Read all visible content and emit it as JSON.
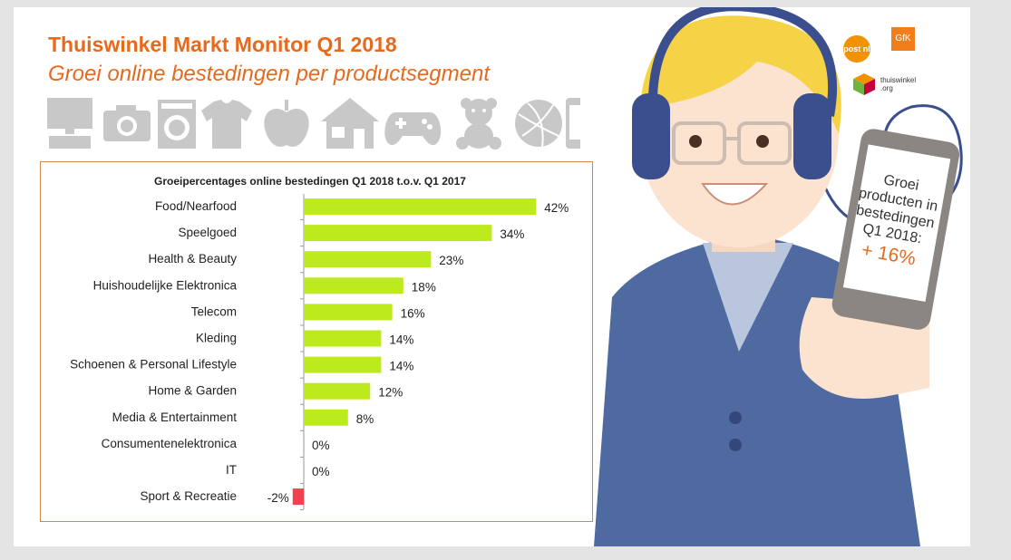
{
  "header": {
    "title": "Thuiswinkel Markt Monitor Q1 2018",
    "subtitle": "Groei online bestedingen per productsegment"
  },
  "icons": [
    "computer-icon",
    "camera-icon",
    "washing-machine-icon",
    "tshirt-icon",
    "apple-icon",
    "house-icon",
    "gamepad-icon",
    "teddy-bear-icon",
    "ball-icon",
    "smartphone-icon"
  ],
  "logos": {
    "postnl": "post nl",
    "gfk": "GfK",
    "thuiswinkel": "thuiswinkel",
    "thuiswinkel_domain": ".org"
  },
  "phone": {
    "text": [
      "Groei",
      "producten in",
      "bestedingen",
      "Q1 2018:"
    ],
    "highlight": "+ 16%"
  },
  "colors": {
    "accent": "#e8691c",
    "positive_bar": "#bdea1d",
    "negative_bar": "#f0414e"
  },
  "chart_data": {
    "type": "bar",
    "orientation": "horizontal",
    "title": "Groeipercentages online bestedingen Q1 2018 t.o.v. Q1 2017",
    "categories": [
      "Food/Nearfood",
      "Speelgoed",
      "Health & Beauty",
      "Huishoudelijke Elektronica",
      "Telecom",
      "Kleding",
      "Schoenen & Personal Lifestyle",
      "Home & Garden",
      "Media & Entertainment",
      "Consumentenelektronica",
      "IT",
      "Sport & Recreatie"
    ],
    "values": [
      42,
      34,
      23,
      18,
      16,
      14,
      14,
      12,
      8,
      0,
      0,
      -2
    ],
    "labels": [
      "42%",
      "34%",
      "23%",
      "18%",
      "16%",
      "14%",
      "14%",
      "12%",
      "8%",
      "0%",
      "0%",
      "-2%"
    ],
    "xlim": [
      -2,
      42
    ],
    "grid": false,
    "legend": false
  }
}
